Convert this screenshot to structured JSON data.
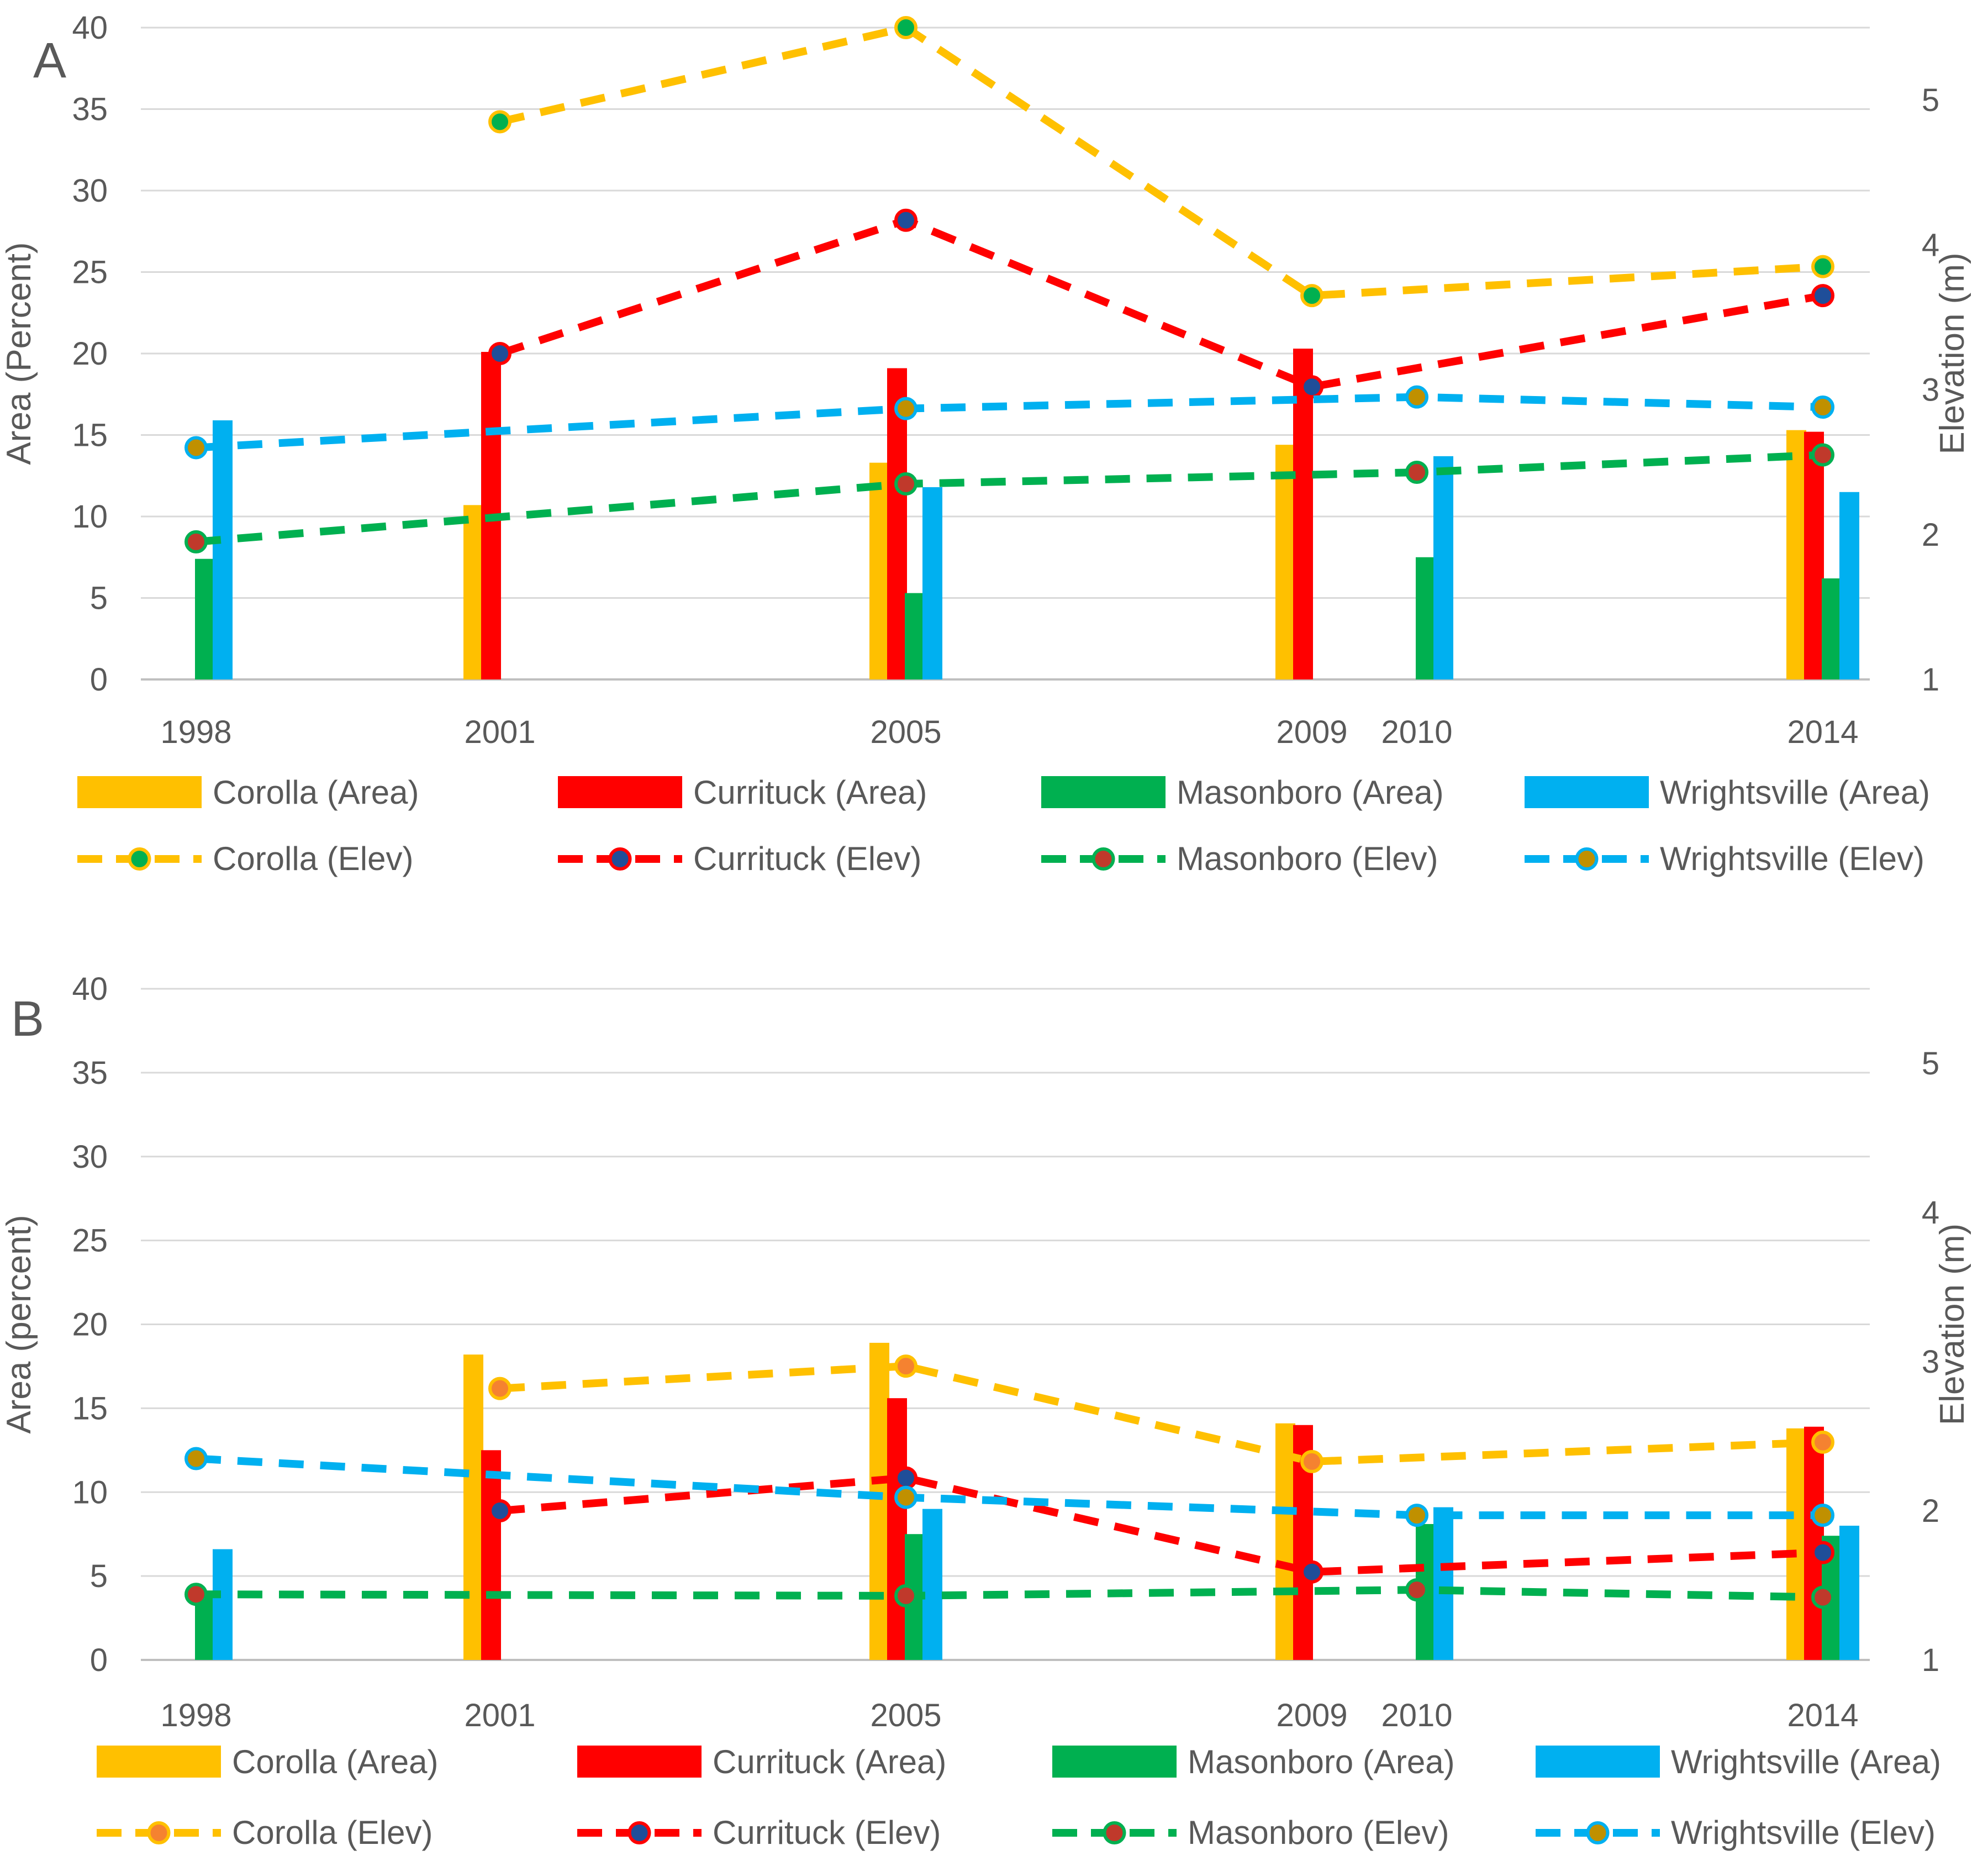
{
  "colors": {
    "corolla": "#FFC000",
    "currituck": "#FF0000",
    "masonboro": "#00B050",
    "wrightsville": "#00B0F0",
    "corolla_marker": "#F58230",
    "currituck_marker": "#1F4E99",
    "masonboro_marker": "#C0392B",
    "wrightsville_marker": "#C09000"
  },
  "chart_data": [
    {
      "type": "bar",
      "panel_label": "A",
      "ylabel": "Area (Percent)",
      "y2label": "Elevation (m)",
      "ylim": [
        0,
        40
      ],
      "y2lim": [
        1,
        5.5
      ],
      "yticks": [
        "0",
        "5",
        "10",
        "15",
        "20",
        "25",
        "30",
        "35",
        "40"
      ],
      "y2ticks": [
        "1",
        "2",
        "3",
        "4",
        "5"
      ],
      "years": [
        "1998",
        "2001",
        "2005",
        "2009",
        "2010",
        "2014"
      ],
      "area_series": [
        {
          "name": "Corolla (Area)",
          "key": "corolla",
          "values": [
            null,
            10.7,
            13.3,
            14.4,
            null,
            15.3
          ]
        },
        {
          "name": "Currituck (Area)",
          "key": "currituck",
          "values": [
            null,
            20.1,
            19.1,
            20.3,
            null,
            15.2
          ]
        },
        {
          "name": "Masonboro (Area)",
          "key": "masonboro",
          "values": [
            7.4,
            null,
            5.3,
            null,
            7.5,
            6.2
          ]
        },
        {
          "name": "Wrightsville (Area)",
          "key": "wrightsville",
          "values": [
            15.9,
            null,
            11.8,
            null,
            13.7,
            11.5
          ]
        }
      ],
      "elev_series": [
        {
          "name": "Corolla (Elev)",
          "key": "corolla",
          "marker": "masonboro",
          "values": [
            null,
            4.85,
            5.5,
            3.65,
            null,
            3.85
          ]
        },
        {
          "name": "Currituck (Elev)",
          "key": "currituck",
          "marker": "currituck_marker",
          "values": [
            null,
            3.25,
            4.17,
            3.02,
            null,
            3.65
          ]
        },
        {
          "name": "Masonboro (Elev)",
          "key": "masonboro",
          "marker": "masonboro_marker",
          "values": [
            1.95,
            null,
            2.35,
            null,
            2.43,
            2.55
          ]
        },
        {
          "name": "Wrightsville (Elev)",
          "key": "wrightsville",
          "marker": "wrightsville_marker",
          "values": [
            2.6,
            null,
            2.87,
            null,
            2.95,
            2.88
          ]
        }
      ]
    },
    {
      "type": "bar",
      "panel_label": "B",
      "ylabel": "Area (percent)",
      "y2label": "Elevation (m)",
      "ylim": [
        0,
        40
      ],
      "y2lim": [
        1,
        5.5
      ],
      "yticks": [
        "0",
        "5",
        "10",
        "15",
        "20",
        "25",
        "30",
        "35",
        "40"
      ],
      "y2ticks": [
        "1",
        "2",
        "3",
        "4",
        "5"
      ],
      "years": [
        "1998",
        "2001",
        "2005",
        "2009",
        "2010",
        "2014"
      ],
      "area_series": [
        {
          "name": "Corolla (Area)",
          "key": "corolla",
          "values": [
            null,
            18.2,
            18.9,
            14.1,
            null,
            13.8
          ]
        },
        {
          "name": "Currituck (Area)",
          "key": "currituck",
          "values": [
            null,
            12.5,
            15.6,
            14.0,
            null,
            13.9
          ]
        },
        {
          "name": "Masonboro (Area)",
          "key": "masonboro",
          "values": [
            3.8,
            null,
            7.5,
            null,
            8.1,
            7.4
          ]
        },
        {
          "name": "Wrightsville (Area)",
          "key": "wrightsville",
          "values": [
            6.6,
            null,
            9.0,
            null,
            9.1,
            8.0
          ]
        }
      ],
      "elev_series": [
        {
          "name": "Corolla (Elev)",
          "key": "corolla",
          "marker": "corolla_marker",
          "values": [
            null,
            2.82,
            2.97,
            2.33,
            null,
            2.46
          ]
        },
        {
          "name": "Currituck (Elev)",
          "key": "currituck",
          "marker": "currituck_marker",
          "values": [
            null,
            2.0,
            2.22,
            1.59,
            null,
            1.72
          ]
        },
        {
          "name": "Masonboro (Elev)",
          "key": "masonboro",
          "marker": "masonboro_marker",
          "values": [
            1.44,
            null,
            1.43,
            null,
            1.47,
            1.42
          ]
        },
        {
          "name": "Wrightsville (Elev)",
          "key": "wrightsville",
          "marker": "wrightsville_marker",
          "values": [
            2.35,
            null,
            2.09,
            null,
            1.97,
            1.97
          ]
        }
      ]
    }
  ]
}
